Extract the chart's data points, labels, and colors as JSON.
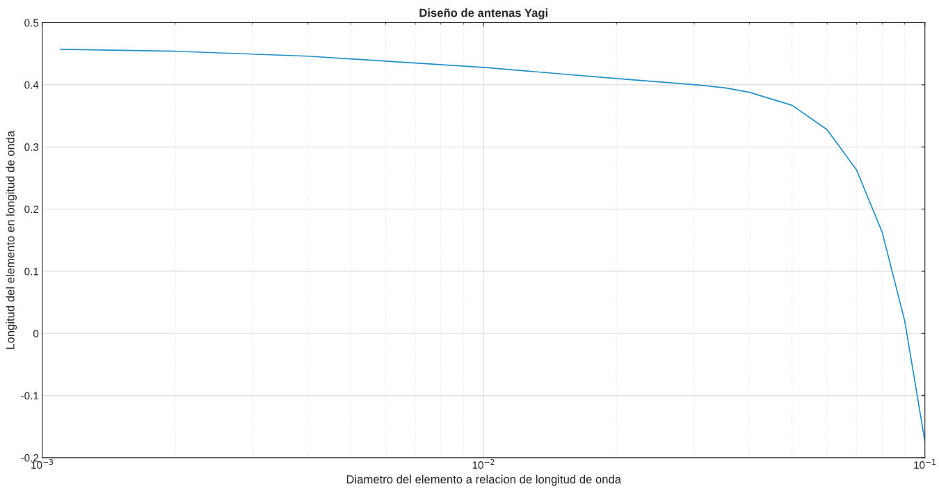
{
  "chart_data": {
    "type": "line",
    "title": "Diseño de antenas Yagi",
    "xlabel": "Diametro del elemento a relacion de longitud de onda",
    "ylabel": "Longitud del elemento en longitud de onda",
    "log": "x",
    "xlim": [
      0.001,
      0.1
    ],
    "xticks": [
      {
        "value": 0.001,
        "label": "10$^{−3}$"
      },
      {
        "value": 0.01,
        "label": "10$^{−2}$"
      },
      {
        "value": 0.1,
        "label": "10$^{−1}$"
      }
    ],
    "ylim": [
      -0.2,
      0.5
    ],
    "yticks": [
      -0.2,
      -0.1,
      0,
      0.1,
      0.2,
      0.3,
      0.4,
      0.5
    ],
    "grid": true,
    "series": [
      {
        "color": "#1f8fc8",
        "x": [
          0.0011,
          0.002,
          0.004,
          0.01,
          0.02,
          0.0303,
          0.0353,
          0.04,
          0.05,
          0.06,
          0.07,
          0.08,
          0.09,
          0.1
        ],
        "values": [
          0.457,
          0.454,
          0.446,
          0.428,
          0.41,
          0.4,
          0.395,
          0.388,
          0.367,
          0.328,
          0.263,
          0.163,
          0.02,
          -0.174
        ]
      }
    ]
  }
}
